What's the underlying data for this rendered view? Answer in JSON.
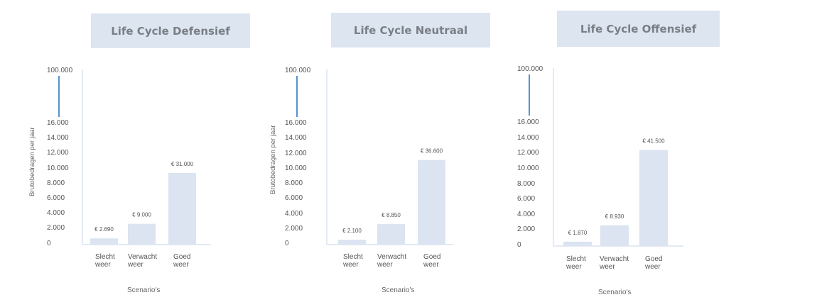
{
  "colors": {
    "bar": "#dbe4f0",
    "title_bg": "#dde5f1",
    "axis": "#dbe4f0",
    "break_line": "#1f6fbf"
  },
  "chart_data": [
    {
      "type": "bar",
      "title": "Life Cycle Defensief",
      "ylabel": "Brutobedragen per jaar",
      "xlabel": "Scenario's",
      "categories": [
        "Slecht weer",
        "Verwacht weer",
        "Goed weer"
      ],
      "values": [
        2690,
        9000,
        31000
      ],
      "data_labels": [
        "€ 2.690",
        "€ 9.000",
        "€ 31.000"
      ],
      "yticks": [
        "0",
        "2.000",
        "4.000",
        "6.000",
        "8.000",
        "10.000",
        "12.000",
        "14.000",
        "16.000"
      ],
      "ytick_top": "100.000",
      "axis_break": true,
      "ylim": [
        0,
        100000
      ]
    },
    {
      "type": "bar",
      "title": "Life Cycle Neutraal",
      "ylabel": "Brutobedragen per jaar",
      "xlabel": "Scenario's",
      "categories": [
        "Slecht weer",
        "Verwacht weer",
        "Goed weer"
      ],
      "values": [
        2100,
        8850,
        36600
      ],
      "data_labels": [
        "€ 2.100",
        "€ 8.850",
        "€ 36.600"
      ],
      "yticks": [
        "0",
        "2.000",
        "4.000",
        "6.000",
        "8.000",
        "10.000",
        "12.000",
        "14.000",
        "16.000"
      ],
      "ytick_top": "100.000",
      "axis_break": true,
      "ylim": [
        0,
        100000
      ]
    },
    {
      "type": "bar",
      "title": "Life Cycle Offensief",
      "ylabel": "",
      "xlabel": "Scenario's",
      "categories": [
        "Slecht weer",
        "Verwacht weer",
        "Goed weer"
      ],
      "values": [
        1870,
        8930,
        41500
      ],
      "data_labels": [
        "€ 1.870",
        "€ 8.930",
        "€ 41.500"
      ],
      "yticks": [
        "0",
        "2.000",
        "4.000",
        "6.000",
        "8.000",
        "10.000",
        "12.000",
        "14.000",
        "16.000"
      ],
      "ytick_top": "100.000",
      "axis_break": true,
      "ylim": [
        0,
        100000
      ]
    }
  ]
}
